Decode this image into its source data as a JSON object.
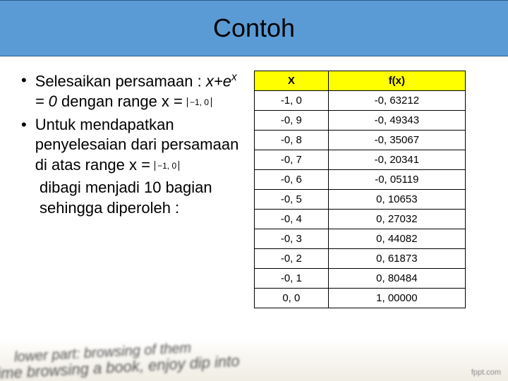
{
  "title": "Contoh",
  "bullets": {
    "b1_part1": "Selesaikan persamaan : ",
    "b1_eq_x": "x",
    "b1_eq_plus": "+",
    "b1_eq_e": "e",
    "b1_eq_sup": "x",
    "b1_eq_rest": " = 0",
    "b1_part2": " dengan range x = ",
    "range": "−1, 0",
    "b2_part1": "Untuk mendapatkan penyelesaian dari persamaan di atas range x = ",
    "b2_cont": "dibagi menjadi 10 bagian sehingga diperoleh :"
  },
  "table": {
    "header_x": "X",
    "header_fx": "f(x)",
    "header_bg": "#ffff00",
    "border_color": "#000000",
    "rows": [
      {
        "x": "-1, 0",
        "fx": "-0, 63212"
      },
      {
        "x": "-0, 9",
        "fx": "-0, 49343"
      },
      {
        "x": "-0, 8",
        "fx": "-0, 35067"
      },
      {
        "x": "-0, 7",
        "fx": "-0, 20341"
      },
      {
        "x": "-0, 6",
        "fx": "-0, 05119"
      },
      {
        "x": "-0, 5",
        "fx": "0, 10653"
      },
      {
        "x": "-0, 4",
        "fx": "0, 27032"
      },
      {
        "x": "-0, 3",
        "fx": "0, 44082"
      },
      {
        "x": "-0, 2",
        "fx": "0, 61873"
      },
      {
        "x": "-0, 1",
        "fx": "0, 80484"
      },
      {
        "x": "0, 0",
        "fx": "1, 00000"
      }
    ]
  },
  "footer": {
    "line1": "lower part: browsing of them",
    "line2": "time browsing a book, enjoy dip into",
    "fppt": "fppt.com"
  },
  "colors": {
    "header_bg": "#5b9bd5",
    "header_border": "#2e5c8a",
    "text": "#000000",
    "page_bg": "#ffffff"
  },
  "fonts": {
    "title_size": 36,
    "body_size": 22,
    "table_size": 15
  }
}
